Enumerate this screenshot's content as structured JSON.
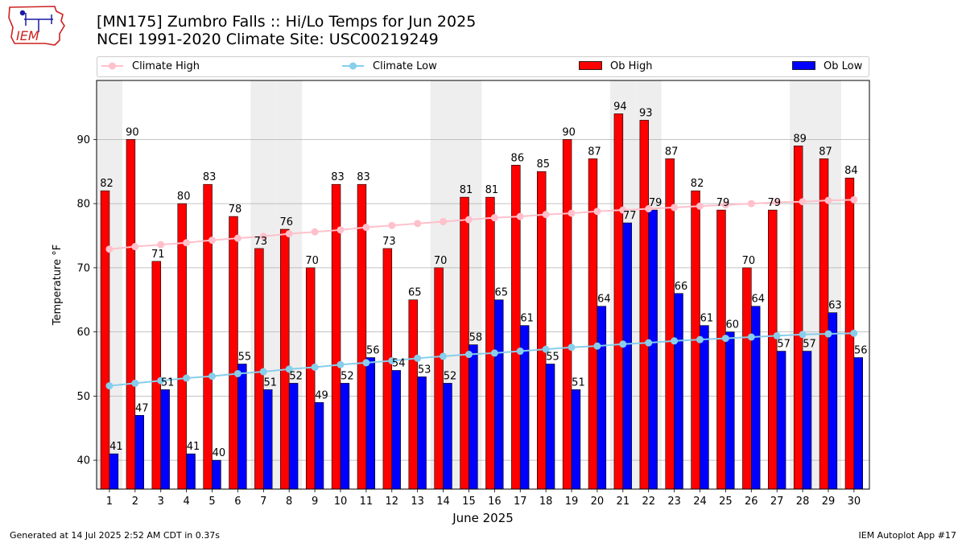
{
  "logo": {
    "text": "IEM"
  },
  "title": {
    "line1": "[MN175] Zumbro Falls :: Hi/Lo Temps for Jun 2025",
    "line2": "NCEI 1991-2020 Climate Site: USC00219249"
  },
  "footer": {
    "generated": "Generated at 14 Jul 2025 2:52 AM CDT in 0.37s",
    "app": "IEM Autoplot App #17"
  },
  "colors": {
    "ob_high": "#ff0000",
    "ob_low": "#0000ff",
    "climate_high": "#ffc0cb",
    "climate_low": "#87ceeb",
    "weekend_band": "#eeeeee"
  },
  "chart_data": {
    "type": "bar",
    "title": "[MN175] Zumbro Falls :: Hi/Lo Temps for Jun 2025",
    "subtitle": "NCEI 1991-2020 Climate Site: USC00219249",
    "xlabel": "June 2025",
    "ylabel": "Temperature °F",
    "ylim": [
      35.5,
      99.2
    ],
    "yticks": [
      40,
      50,
      60,
      70,
      80,
      90
    ],
    "grid": true,
    "legend_position": "top",
    "categories": [
      "1",
      "2",
      "3",
      "4",
      "5",
      "6",
      "7",
      "8",
      "9",
      "10",
      "11",
      "12",
      "13",
      "14",
      "15",
      "16",
      "17",
      "18",
      "19",
      "20",
      "21",
      "22",
      "23",
      "24",
      "25",
      "26",
      "27",
      "28",
      "29",
      "30"
    ],
    "shaded_days": [
      1,
      7,
      8,
      14,
      15,
      21,
      22,
      28,
      29
    ],
    "series": [
      {
        "name": "Ob High",
        "type": "bar",
        "values": [
          82,
          90,
          71,
          80,
          83,
          78,
          73,
          76,
          70,
          83,
          83,
          73,
          65,
          70,
          81,
          81,
          86,
          85,
          90,
          87,
          94,
          93,
          87,
          82,
          79,
          70,
          79,
          89,
          87,
          84
        ]
      },
      {
        "name": "Ob Low",
        "type": "bar",
        "values": [
          41,
          47,
          51,
          41,
          40,
          55,
          51,
          52,
          49,
          52,
          56,
          54,
          53,
          52,
          58,
          65,
          61,
          55,
          51,
          64,
          77,
          79,
          66,
          61,
          60,
          64,
          57,
          57,
          63,
          56
        ]
      },
      {
        "name": "Climate High",
        "type": "line",
        "values": [
          72.9,
          73.3,
          73.6,
          73.9,
          74.3,
          74.6,
          74.9,
          75.3,
          75.6,
          75.9,
          76.3,
          76.6,
          76.9,
          77.2,
          77.5,
          77.8,
          78.0,
          78.3,
          78.5,
          78.8,
          79.0,
          79.2,
          79.4,
          79.6,
          79.8,
          80.0,
          80.2,
          80.3,
          80.5,
          80.6
        ]
      },
      {
        "name": "Climate Low",
        "type": "line",
        "values": [
          51.6,
          52.0,
          52.4,
          52.8,
          53.1,
          53.5,
          53.8,
          54.2,
          54.5,
          54.9,
          55.2,
          55.5,
          55.9,
          56.2,
          56.5,
          56.7,
          57.0,
          57.3,
          57.6,
          57.8,
          58.1,
          58.3,
          58.6,
          58.8,
          59.0,
          59.2,
          59.4,
          59.6,
          59.7,
          59.8
        ]
      }
    ]
  }
}
